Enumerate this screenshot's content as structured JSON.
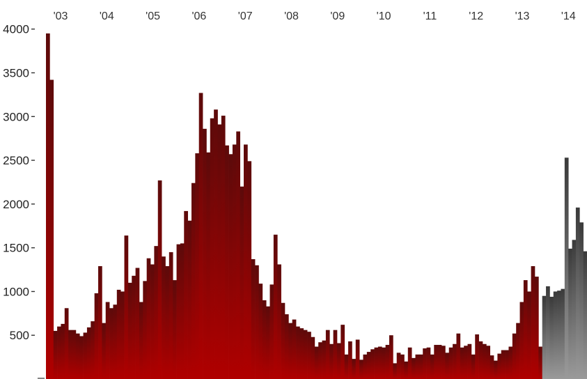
{
  "chart_data": {
    "type": "bar",
    "title": "",
    "xlabel": "",
    "ylabel": "",
    "ylim": [
      0,
      4000
    ],
    "grid": false,
    "y_ticks": [
      {
        "value": 4000,
        "label": "4000"
      },
      {
        "value": 3500,
        "label": "3500"
      },
      {
        "value": 3000,
        "label": "3000"
      },
      {
        "value": 2500,
        "label": "2500"
      },
      {
        "value": 2000,
        "label": "2000"
      },
      {
        "value": 1500,
        "label": "1500"
      },
      {
        "value": 1000,
        "label": "1000"
      },
      {
        "value": 500,
        "label": "500"
      }
    ],
    "x_labels": [
      "'03",
      "'04",
      "'05",
      "'06",
      "'07",
      "'08",
      "'09",
      "'10",
      "'11",
      "'12",
      "'13",
      "'14"
    ],
    "colors": {
      "historical_top": "#5c0a0a",
      "historical_bottom": "#b00000",
      "recent_top": "#3a3a3a",
      "recent_bottom": "#9a9a9a"
    },
    "series": [
      {
        "values": [
          3950,
          3420,
          550,
          600,
          630,
          810,
          560,
          560,
          520,
          490,
          530,
          590,
          660,
          980,
          1290,
          640,
          880,
          810,
          850,
          1020,
          1000,
          1640,
          1100,
          1180,
          1270,
          880,
          1120,
          1380,
          1310,
          1520,
          2270,
          1400,
          1290,
          1450,
          1130,
          1540,
          1550,
          1920,
          1810,
          2240,
          2580,
          3270,
          2860,
          2590,
          2980,
          3080,
          2910,
          3010,
          2670,
          2570,
          2680,
          2830,
          2200,
          2680,
          2490,
          1370,
          1300,
          1090,
          900,
          830,
          1080,
          1650,
          1310,
          870,
          740,
          640,
          680,
          600,
          580,
          560,
          540,
          480,
          370,
          420,
          440,
          560,
          400,
          560,
          410,
          620,
          280,
          430,
          230,
          450,
          220,
          280,
          310,
          340,
          360,
          370,
          360,
          390,
          500,
          180,
          300,
          280,
          200,
          360,
          240,
          280,
          280,
          350,
          360,
          280,
          390,
          390,
          380,
          300,
          360,
          400,
          520,
          360,
          380,
          400,
          280,
          510,
          430,
          400,
          380,
          270,
          210,
          290,
          330,
          330,
          370,
          520,
          640,
          880,
          1130,
          1000,
          1290,
          1170,
          370
        ]
      },
      {
        "values": [
          950,
          1060,
          940,
          1000,
          1010,
          1030,
          2530,
          1490,
          1590,
          1960,
          1790,
          1460
        ]
      }
    ]
  }
}
